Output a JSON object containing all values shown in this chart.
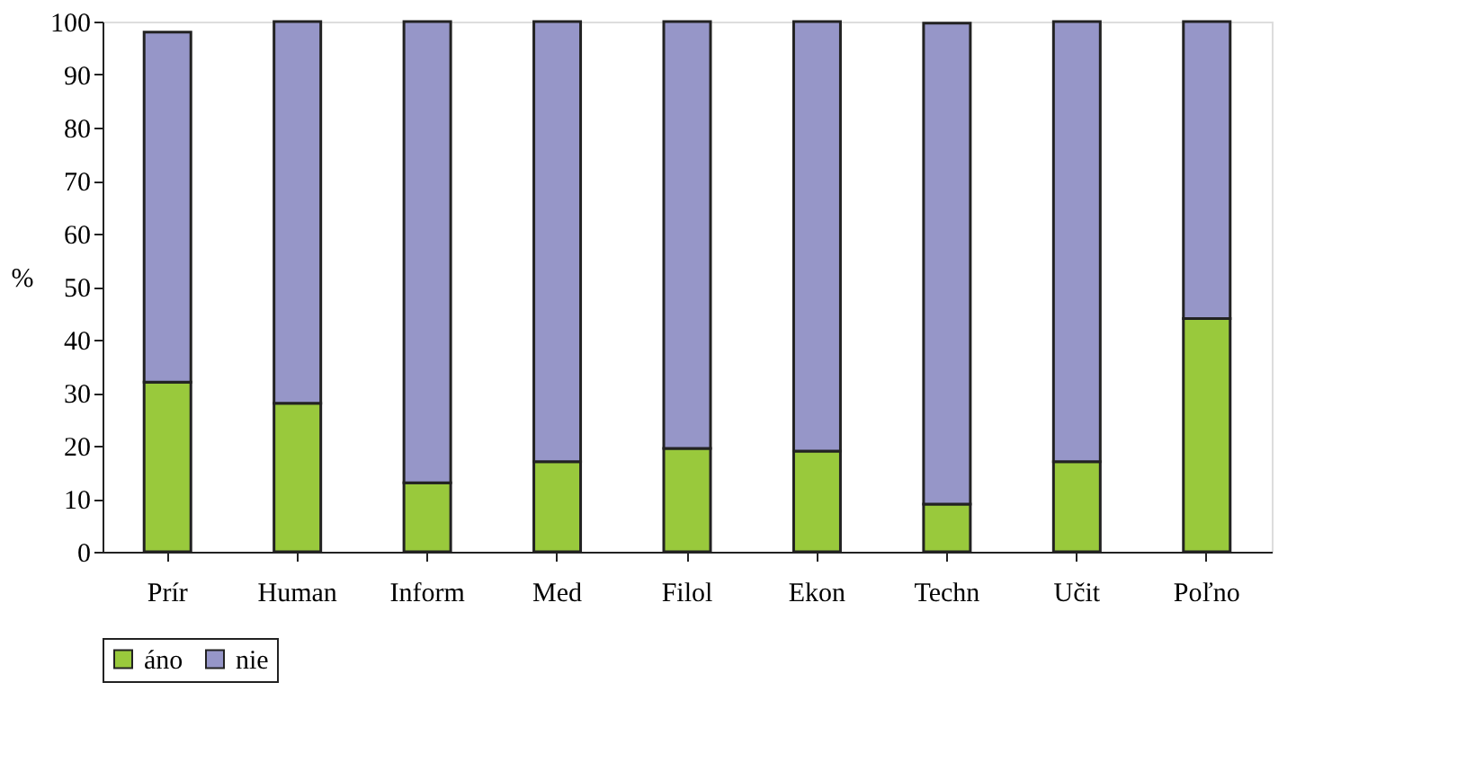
{
  "chart_data": {
    "type": "bar",
    "stacked": true,
    "ylabel": "%",
    "categories": [
      "Prír",
      "Human",
      "Inform",
      "Med",
      "Filol",
      "Ekon",
      "Techn",
      "Učit",
      "Poľno"
    ],
    "series": [
      {
        "name": "áno",
        "color": "#99c93c",
        "values": [
          32,
          28,
          13,
          17,
          19.5,
          19,
          9,
          17,
          44
        ]
      },
      {
        "name": "nie",
        "color": "#9696c8",
        "values": [
          66,
          72,
          87,
          83,
          80.5,
          81,
          90.7,
          83,
          56
        ]
      }
    ],
    "ylim": [
      0,
      100
    ],
    "yticks": [
      0,
      10,
      20,
      30,
      40,
      50,
      60,
      70,
      80,
      90,
      100
    ],
    "grid": false,
    "legend": "bottom"
  }
}
